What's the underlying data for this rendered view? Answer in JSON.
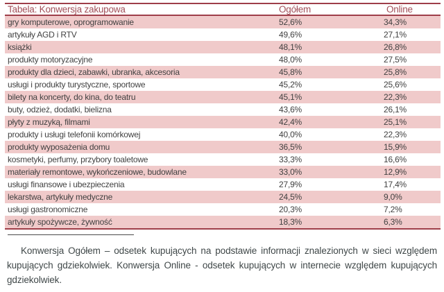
{
  "colors": {
    "border_red": "#9e3e49",
    "header_text_red": "#a24f59",
    "row_pink": "#f0caca",
    "row_text": "#414141",
    "footnote_text": "#3f4748"
  },
  "table": {
    "title": "Tabela: Konwersja zakupowa",
    "col_ogolem": "Ogółem",
    "col_online": "Online",
    "rows": [
      {
        "label": "gry komputerowe, oprogramowanie",
        "ogolem": "52,6%",
        "online": "34,3%"
      },
      {
        "label": "artykuły AGD i RTV",
        "ogolem": "49,6%",
        "online": "27,1%"
      },
      {
        "label": "książki",
        "ogolem": "48,1%",
        "online": "26,8%"
      },
      {
        "label": "produkty motoryzacyjne",
        "ogolem": "48,0%",
        "online": "27,5%"
      },
      {
        "label": "produkty dla dzieci, zabawki, ubranka, akcesoria",
        "ogolem": "45,8%",
        "online": "25,8%"
      },
      {
        "label": "usługi i produkty turystyczne, sportowe",
        "ogolem": "45,2%",
        "online": "25,6%"
      },
      {
        "label": "bilety na koncerty, do kina, do teatru",
        "ogolem": "45,1%",
        "online": "22,3%"
      },
      {
        "label": "buty, odzież, dodatki, bielizna",
        "ogolem": "43,6%",
        "online": "26,1%"
      },
      {
        "label": "płyty z muzyką, filmami",
        "ogolem": "42,4%",
        "online": "25,1%"
      },
      {
        "label": "produkty i usługi telefonii komórkowej",
        "ogolem": "40,0%",
        "online": "22,3%"
      },
      {
        "label": "produkty wyposażenia domu",
        "ogolem": "36,5%",
        "online": "15,9%"
      },
      {
        "label": "kosmetyki, perfumy, przybory toaletowe",
        "ogolem": "33,3%",
        "online": "16,6%"
      },
      {
        "label": "materiały remontowe, wykończeniowe, budowlane",
        "ogolem": "33,0%",
        "online": "12,9%"
      },
      {
        "label": "usługi finansowe i ubezpieczenia",
        "ogolem": "27,9%",
        "online": "17,4%"
      },
      {
        "label": "lekarstwa, artykuły medyczne",
        "ogolem": "24,5%",
        "online": "9,0%"
      },
      {
        "label": "usługi gastronomiczne",
        "ogolem": "20,3%",
        "online": "7,2%"
      },
      {
        "label": "artykuły spożywcze, żywność",
        "ogolem": "18,3%",
        "online": "6,3%"
      }
    ]
  },
  "footnote": {
    "text": "Konwersja Ogółem – odsetek kupujących na podstawie informacji znalezionych w sieci względem kupujących gdziekolwiek. Konwersja Online - odsetek kupujących w internecie względem kupujących gdziekolwiek."
  },
  "chart_data": {
    "type": "table",
    "title": "Tabela: Konwersja zakupowa",
    "columns": [
      "Ogółem",
      "Online"
    ],
    "categories": [
      "gry komputerowe, oprogramowanie",
      "artykuły AGD i RTV",
      "książki",
      "produkty motoryzacyjne",
      "produkty dla dzieci, zabawki, ubranka, akcesoria",
      "usługi i produkty turystyczne, sportowe",
      "bilety na koncerty, do kina, do teatru",
      "buty, odzież, dodatki, bielizna",
      "płyty z muzyką, filmami",
      "produkty i usługi telefonii komórkowej",
      "produkty wyposażenia domu",
      "kosmetyki, perfumy, przybory toaletowe",
      "materiały remontowe, wykończeniowe, budowlane",
      "usługi finansowe i ubezpieczenia",
      "lekarstwa, artykuły medyczne",
      "usługi gastronomiczne",
      "artykuły spożywcze, żywność"
    ],
    "series": [
      {
        "name": "Ogółem",
        "values": [
          52.6,
          49.6,
          48.1,
          48.0,
          45.8,
          45.2,
          45.1,
          43.6,
          42.4,
          40.0,
          36.5,
          33.3,
          33.0,
          27.9,
          24.5,
          20.3,
          18.3
        ]
      },
      {
        "name": "Online",
        "values": [
          34.3,
          27.1,
          26.8,
          27.5,
          25.8,
          25.6,
          22.3,
          26.1,
          25.1,
          22.3,
          15.9,
          16.6,
          12.9,
          17.4,
          9.0,
          7.2,
          6.3
        ]
      }
    ],
    "unit": "%",
    "stripe_pattern": "odd rows pink (#f0caca), even rows white"
  }
}
